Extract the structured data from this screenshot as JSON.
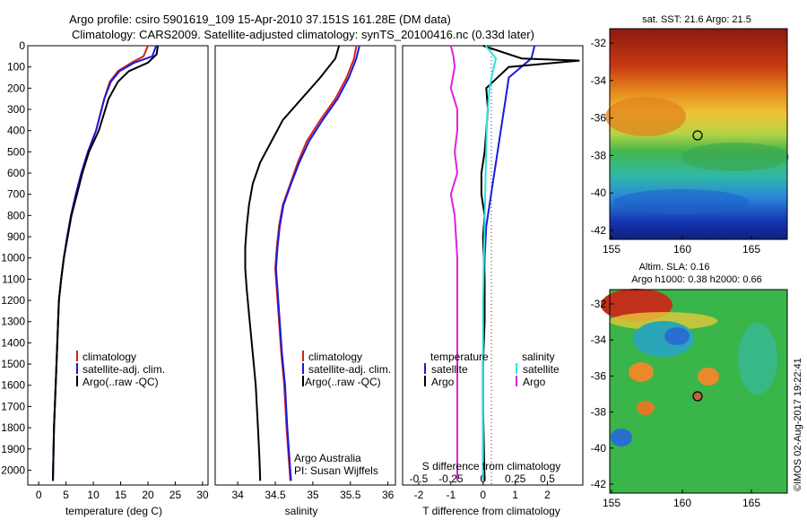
{
  "title_line1": "Argo profile: csiro 5901619_109 15-Apr-2010 37.151S 161.28E (DM data)",
  "title_line2": "Climatology: CARS2009. Satellite-adjusted climatology: synTS_20100416.nc (0.33d later)",
  "credit": "©IMOS 02-Aug-2017 19:22:41",
  "colors": {
    "climatology": "#d42020",
    "satellite": "#1a1adc",
    "argo": "#000000",
    "argo_salinity_diff": "#e020e0",
    "satellite_salinity_diff": "#30e0e0"
  },
  "chart_data": [
    {
      "type": "line",
      "panel": "temperature",
      "xlabel": "temperature (deg C)",
      "xlim": [
        -2,
        31
      ],
      "ylim": [
        2070,
        0
      ],
      "xticks": [
        "0",
        "5",
        "10",
        "15",
        "20",
        "25",
        "30"
      ],
      "yticks": [
        "0",
        "100",
        "200",
        "300",
        "400",
        "500",
        "600",
        "700",
        "800",
        "900",
        "1000",
        "1100",
        "1200",
        "1300",
        "1400",
        "1500",
        "1600",
        "1700",
        "1800",
        "1900",
        "2000"
      ],
      "legend": [
        "climatology",
        "satellite-adj. clim.",
        "Argo(..raw -QC)"
      ],
      "series": [
        {
          "name": "climatology",
          "color": "#d42020",
          "x": [
            20,
            19.2,
            17,
            14.5,
            13,
            12,
            10.5,
            9,
            7.8,
            6.8,
            5.9,
            5.2,
            4.6,
            4.1,
            3.7,
            3.4,
            3.1,
            2.8,
            2.6
          ],
          "y": [
            0,
            50,
            80,
            120,
            170,
            250,
            400,
            500,
            600,
            700,
            800,
            900,
            1000,
            1100,
            1200,
            1400,
            1600,
            1800,
            2050
          ]
        },
        {
          "name": "satellite-adj. clim.",
          "color": "#1a1adc",
          "x": [
            21.5,
            20.8,
            17.5,
            14.8,
            13.2,
            12,
            10.5,
            9,
            7.8,
            6.8,
            5.9,
            5.2,
            4.6,
            4.1,
            3.7,
            3.4,
            3.1,
            2.8,
            2.6
          ],
          "y": [
            0,
            50,
            80,
            120,
            170,
            250,
            400,
            500,
            600,
            700,
            800,
            900,
            1000,
            1100,
            1200,
            1400,
            1600,
            1800,
            2050
          ]
        },
        {
          "name": "Argo(..raw -QC)",
          "color": "#000000",
          "x": [
            21.8,
            21.6,
            20,
            16.5,
            14.5,
            12.8,
            11,
            9.2,
            8,
            7,
            6,
            5.3,
            4.6,
            4.1,
            3.7,
            3.4,
            3.1,
            2.8,
            2.6
          ],
          "y": [
            0,
            40,
            80,
            120,
            170,
            250,
            400,
            500,
            600,
            700,
            800,
            900,
            1000,
            1100,
            1200,
            1400,
            1600,
            1800,
            2050
          ]
        }
      ]
    },
    {
      "type": "line",
      "panel": "salinity",
      "xlabel": "salinity",
      "xlim": [
        33.7,
        36.1
      ],
      "ylim": [
        2070,
        0
      ],
      "xticks": [
        "34",
        "34.5",
        "35",
        "35.5",
        "36"
      ],
      "legend": [
        "climatology",
        "satellite-adj. clim.",
        " Argo(..raw -QC)"
      ],
      "annotation": [
        "Argo Australia",
        "PI: Susan Wijffels"
      ],
      "series": [
        {
          "name": "climatology",
          "color": "#d42020",
          "x": [
            35.58,
            35.55,
            35.45,
            35.3,
            35.1,
            34.92,
            34.8,
            34.7,
            34.6,
            34.55,
            34.52,
            34.5,
            34.52,
            34.55,
            34.58,
            34.62,
            34.65,
            34.68,
            34.7
          ],
          "y": [
            0,
            60,
            150,
            250,
            350,
            450,
            550,
            650,
            750,
            850,
            950,
            1050,
            1150,
            1300,
            1450,
            1600,
            1800,
            1950,
            2050
          ]
        },
        {
          "name": "satellite-adj. clim.",
          "color": "#1a1adc",
          "x": [
            35.62,
            35.58,
            35.48,
            35.33,
            35.13,
            34.95,
            34.82,
            34.71,
            34.61,
            34.56,
            34.53,
            34.51,
            34.53,
            34.56,
            34.59,
            34.63,
            34.66,
            34.69,
            34.71
          ],
          "y": [
            0,
            60,
            150,
            250,
            350,
            450,
            550,
            650,
            750,
            850,
            950,
            1050,
            1150,
            1300,
            1450,
            1600,
            1800,
            1950,
            2050
          ]
        },
        {
          "name": "Argo(..raw -QC)",
          "color": "#000000",
          "x": [
            35.35,
            35.3,
            35.1,
            34.85,
            34.6,
            34.45,
            34.3,
            34.2,
            34.15,
            34.12,
            34.1,
            34.1,
            34.12,
            34.16,
            34.2,
            34.24,
            34.27,
            34.29,
            34.3
          ],
          "y": [
            0,
            60,
            150,
            250,
            350,
            450,
            550,
            650,
            750,
            850,
            950,
            1050,
            1150,
            1300,
            1450,
            1600,
            1800,
            1950,
            2050
          ]
        }
      ]
    },
    {
      "type": "line",
      "panel": "difference",
      "xlabel": "T difference from climatology",
      "xlabel_top": "S difference from climatology",
      "xlim": [
        -2.5,
        3.1
      ],
      "ylim": [
        2070,
        0
      ],
      "xticks_s": [
        "-0.5",
        "-0.25",
        "0",
        "0.25",
        "0.5"
      ],
      "xticks_t": [
        "-2",
        "-1",
        "0",
        "1",
        "2"
      ],
      "legend": [
        "temperature",
        "satellite",
        "Argo",
        "salinity",
        "satellite",
        "Argo"
      ],
      "series": [
        {
          "name": "satellite",
          "quantity": "temperature",
          "color": "#1a1adc",
          "x": [
            1.6,
            1.5,
            0.8,
            0.7,
            0.6,
            0.5,
            0.4,
            0.3,
            0.2,
            0.1,
            0.05,
            0.03,
            0.02,
            0,
            0,
            0,
            0
          ],
          "y": [
            0,
            60,
            150,
            250,
            350,
            450,
            550,
            650,
            750,
            850,
            1000,
            1150,
            1300,
            1500,
            1700,
            1900,
            2050
          ]
        },
        {
          "name": "Argo",
          "quantity": "temperature",
          "color": "#000000",
          "x": [
            0,
            1.2,
            3,
            0.8,
            0.1,
            0.15,
            0.1,
            0.05,
            -0.05,
            -0.05,
            0.05,
            0,
            0.05,
            0.05,
            0,
            0,
            0.05
          ],
          "y": [
            0,
            60,
            70,
            100,
            200,
            300,
            400,
            500,
            600,
            700,
            800,
            900,
            1100,
            1300,
            1500,
            1700,
            2050
          ]
        },
        {
          "name": "satellite",
          "quantity": "salinity",
          "color": "#30e0e0",
          "x": [
            0.02,
            0.1,
            0.08,
            0.05,
            0.03,
            0.02,
            0.01,
            0,
            0,
            0,
            0
          ],
          "y": [
            0,
            60,
            110,
            200,
            350,
            600,
            900,
            1200,
            1500,
            1800,
            2050
          ]
        },
        {
          "name": "Argo",
          "quantity": "salinity",
          "color": "#e020e0",
          "x": [
            -0.25,
            -0.23,
            -0.22,
            -0.25,
            -0.2,
            -0.2,
            -0.22,
            -0.2,
            -0.25,
            -0.22,
            -0.2,
            -0.2,
            -0.2,
            -0.2,
            -0.2
          ],
          "y": [
            0,
            50,
            100,
            200,
            300,
            400,
            500,
            600,
            700,
            800,
            1000,
            1200,
            1500,
            1800,
            2050
          ]
        }
      ]
    },
    {
      "type": "heatmap",
      "panel": "sst-map",
      "title": "sat. SST: 21.6 Argo: 21.5",
      "xticks": [
        "155",
        "160",
        "165"
      ],
      "yticks": [
        "-32",
        "-34",
        "-36",
        "-38",
        "-40",
        "-42"
      ],
      "marker": {
        "lon": 161.28,
        "lat": -37.151
      }
    },
    {
      "type": "heatmap",
      "panel": "sla-map",
      "title_line1": "Altim. SLA: 0.16",
      "title_line2": "Argo h1000: 0.38 h2000: 0.66",
      "xticks": [
        "155",
        "160",
        "165"
      ],
      "yticks": [
        "-32",
        "-34",
        "-36",
        "-38",
        "-40",
        "-42"
      ],
      "marker": {
        "lon": 161.28,
        "lat": -37.151
      }
    }
  ]
}
